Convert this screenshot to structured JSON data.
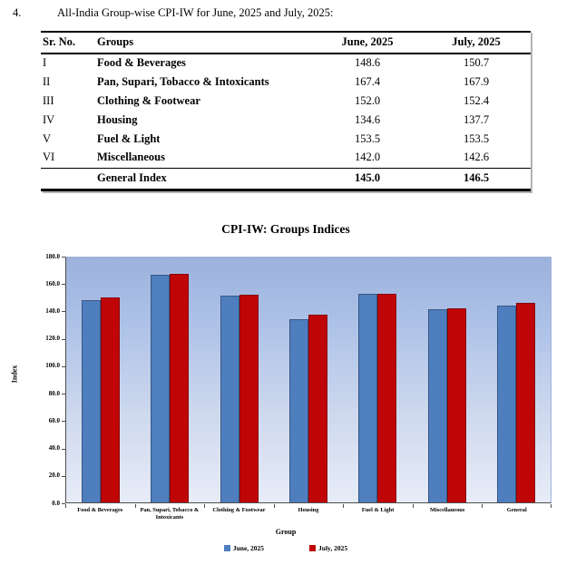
{
  "page": {
    "item_number": "4.",
    "heading": "All-India Group-wise CPI-IW for June, 2025 and July, 2025:"
  },
  "table": {
    "columns": [
      "Sr. No.",
      "Groups",
      "June, 2025",
      "July, 2025"
    ],
    "rows": [
      {
        "sr": "I",
        "group": "Food & Beverages",
        "june": "148.6",
        "july": "150.7"
      },
      {
        "sr": "II",
        "group": "Pan, Supari, Tobacco & Intoxicants",
        "june": "167.4",
        "july": "167.9"
      },
      {
        "sr": "III",
        "group": "Clothing & Footwear",
        "june": "152.0",
        "july": "152.4"
      },
      {
        "sr": "IV",
        "group": "Housing",
        "june": "134.6",
        "july": "137.7"
      },
      {
        "sr": "V",
        "group": "Fuel & Light",
        "june": "153.5",
        "july": "153.5"
      },
      {
        "sr": "VI",
        "group": "Miscellaneous",
        "june": "142.0",
        "july": "142.6"
      }
    ],
    "footer": {
      "sr": "",
      "group": "General Index",
      "june": "145.0",
      "july": "146.5"
    }
  },
  "chart_data": {
    "type": "bar",
    "title": "CPI-IW: Groups Indices",
    "categories": [
      "Food & Beverages",
      "Pan, Supari, Tobacco & Intoxicants",
      "Clothing & Footwear",
      "Housing",
      "Fuel & Light",
      "Miscellaneous",
      "General"
    ],
    "series": [
      {
        "name": "June, 2025",
        "color": "#4f7ebe",
        "values": [
          148.6,
          167.4,
          152.0,
          134.6,
          153.5,
          142.0,
          145.0
        ]
      },
      {
        "name": "July, 2025",
        "color": "#c00506",
        "values": [
          150.7,
          167.9,
          152.4,
          137.7,
          153.5,
          142.6,
          146.5
        ]
      }
    ],
    "xlabel": "Group",
    "ylabel": "Index",
    "ylim": [
      0,
      180
    ],
    "ytick_step": 20,
    "ytick_format_decimals": 1,
    "grid": false,
    "legend_position": "bottom",
    "plot_background": "gradient-blue",
    "bar_border_color": "rgba(0,0,0,0.3)"
  }
}
